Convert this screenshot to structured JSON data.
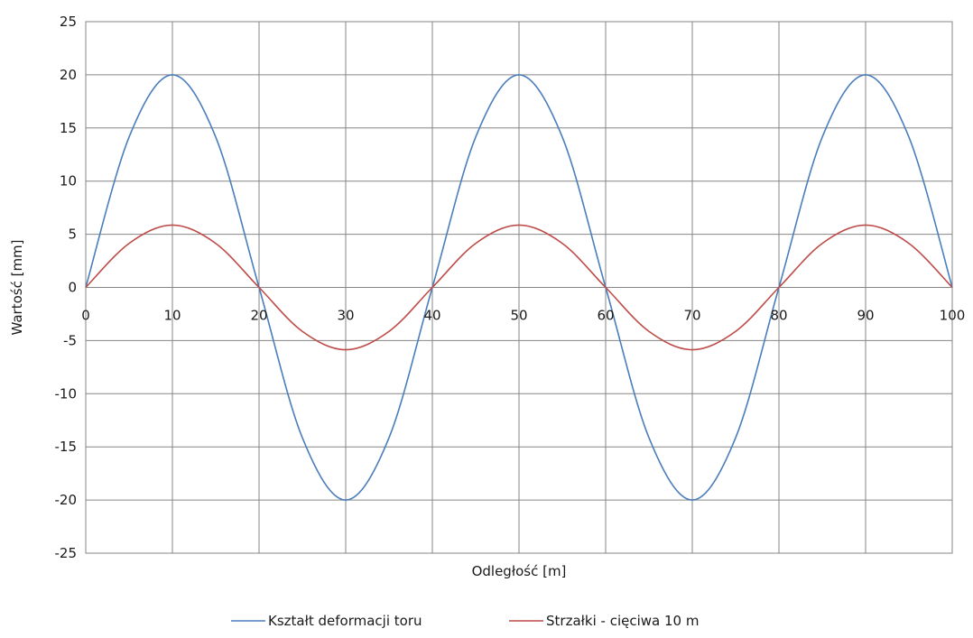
{
  "chart_data": {
    "type": "line",
    "title": "",
    "xlabel": "Odległość [m]",
    "ylabel": "Wartość [mm]",
    "xlim": [
      0,
      100
    ],
    "ylim": [
      -25,
      25
    ],
    "x_ticks": [
      "0",
      "10",
      "20",
      "30",
      "40",
      "50",
      "60",
      "70",
      "80",
      "90",
      "100"
    ],
    "y_ticks": [
      "25",
      "20",
      "15",
      "10",
      "5",
      "0",
      "-5",
      "-10",
      "-15",
      "-20",
      "-25"
    ],
    "grid": true,
    "legend_position": "bottom",
    "x": [
      0,
      5,
      10,
      15,
      20,
      25,
      30,
      35,
      40,
      45,
      50,
      55,
      60,
      65,
      70,
      75,
      80,
      85,
      90,
      95,
      100
    ],
    "series": [
      {
        "name": "Kształt deformacji toru",
        "color": "#4a7ebb",
        "values": [
          0,
          14.14,
          20,
          14.14,
          0,
          -14.14,
          -20,
          -14.14,
          0,
          14.14,
          20,
          14.14,
          0,
          -14.14,
          -20,
          -14.14,
          0,
          14.14,
          20,
          14.14,
          0
        ]
      },
      {
        "name": "Strzałki - cięciwa 10 m",
        "color": "#be4b48",
        "values": [
          0,
          4.14,
          5.86,
          4.14,
          0,
          -4.14,
          -5.86,
          -4.14,
          0,
          4.14,
          5.86,
          4.14,
          0,
          -4.14,
          -5.86,
          -4.14,
          0,
          4.14,
          5.86,
          4.14,
          0
        ]
      }
    ]
  }
}
